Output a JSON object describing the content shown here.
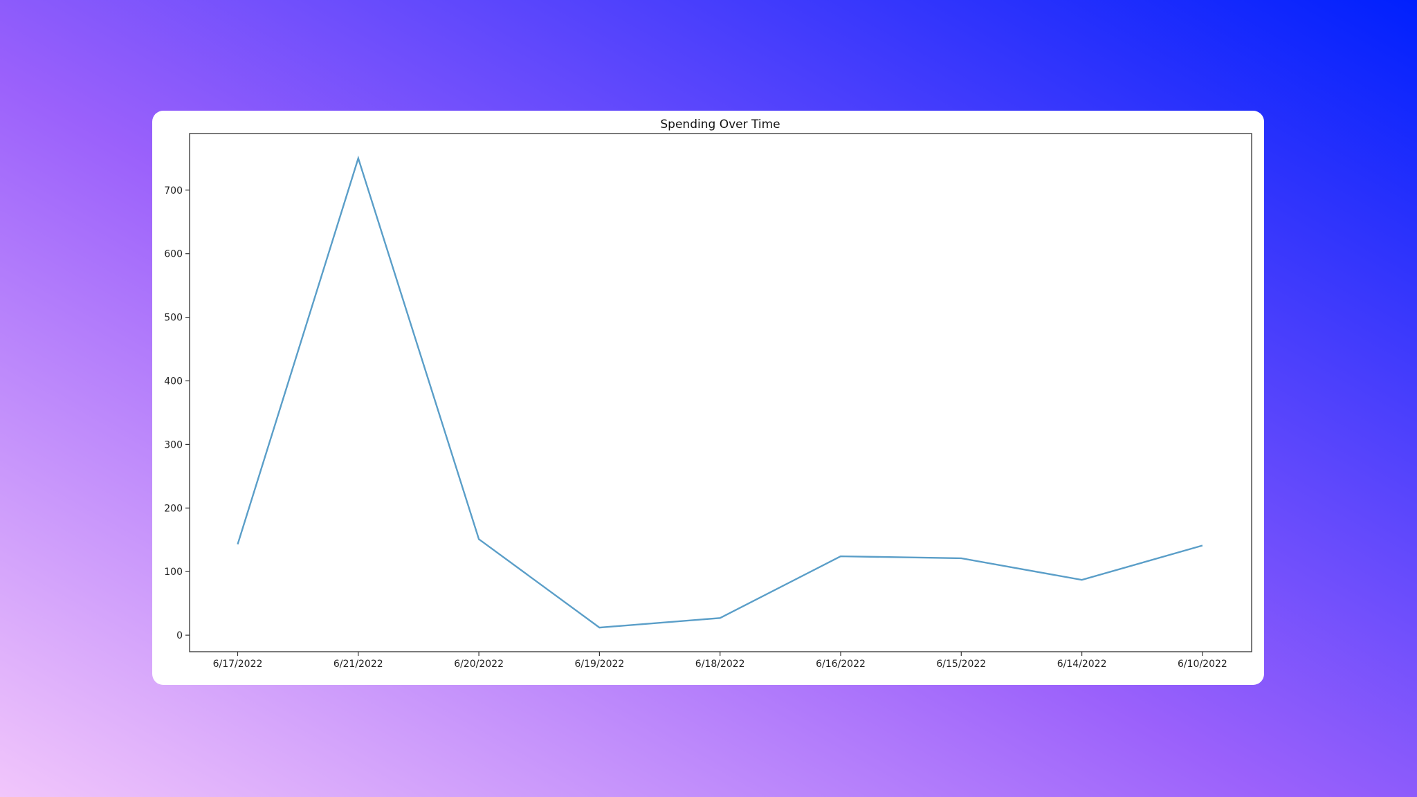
{
  "colors": {
    "line": "#5a9ec8",
    "axis": "#333333",
    "card": "#ffffff"
  },
  "chart_data": {
    "type": "line",
    "title": "Spending Over Time",
    "xlabel": "",
    "ylabel": "",
    "categories": [
      "6/17/2022",
      "6/21/2022",
      "6/20/2022",
      "6/19/2022",
      "6/18/2022",
      "6/16/2022",
      "6/15/2022",
      "6/14/2022",
      "6/10/2022"
    ],
    "series": [
      {
        "values": [
          143,
          750,
          151,
          12,
          27,
          124,
          121,
          87,
          141
        ]
      }
    ],
    "ylim": [
      -26,
      789
    ],
    "yticks": [
      0,
      100,
      200,
      300,
      400,
      500,
      600,
      700
    ],
    "grid": false,
    "legend": "none"
  }
}
